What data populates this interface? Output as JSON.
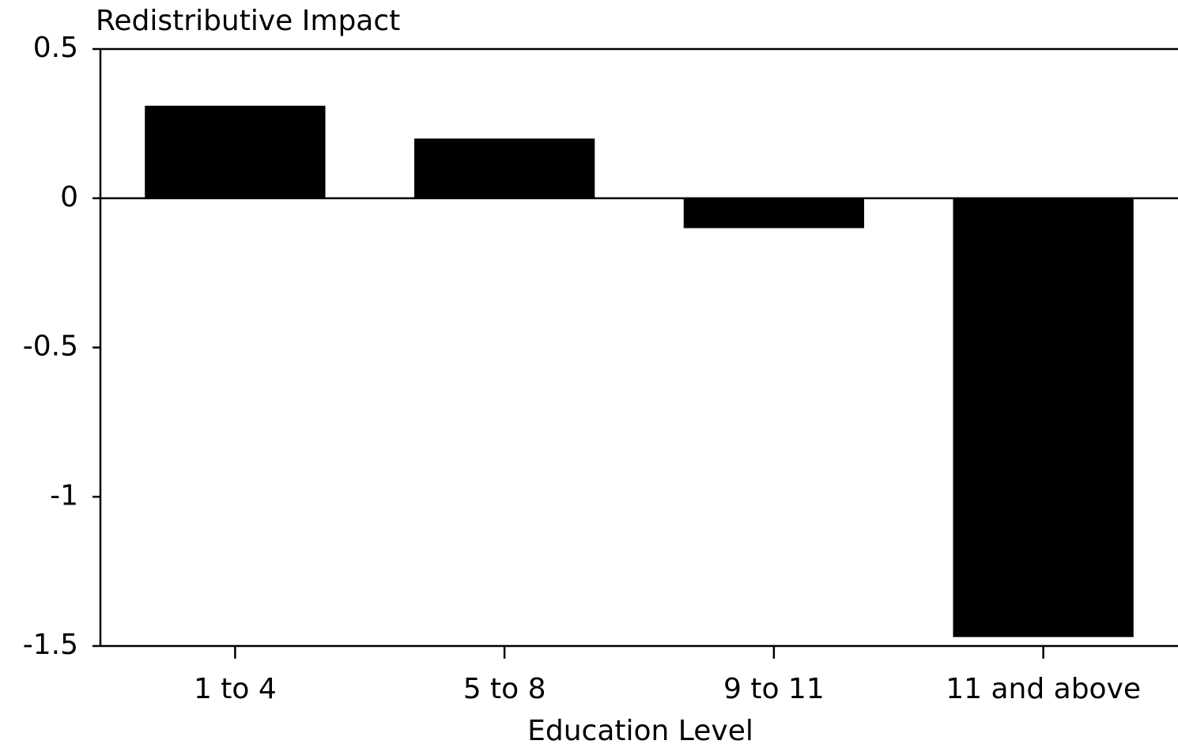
{
  "chart_data": {
    "type": "bar",
    "y_label": "Redistributive Impact",
    "x_label": "Education Level",
    "categories": [
      "1 to 4",
      "5 to 8",
      "9 to 11",
      "11 and above"
    ],
    "values": [
      0.31,
      0.2,
      -0.1,
      -1.47
    ],
    "color": "#000000",
    "ylim": [
      -1.5,
      0.5
    ],
    "yticks": [
      0.5,
      0,
      -0.5,
      -1,
      -1.5
    ],
    "grid": false
  }
}
